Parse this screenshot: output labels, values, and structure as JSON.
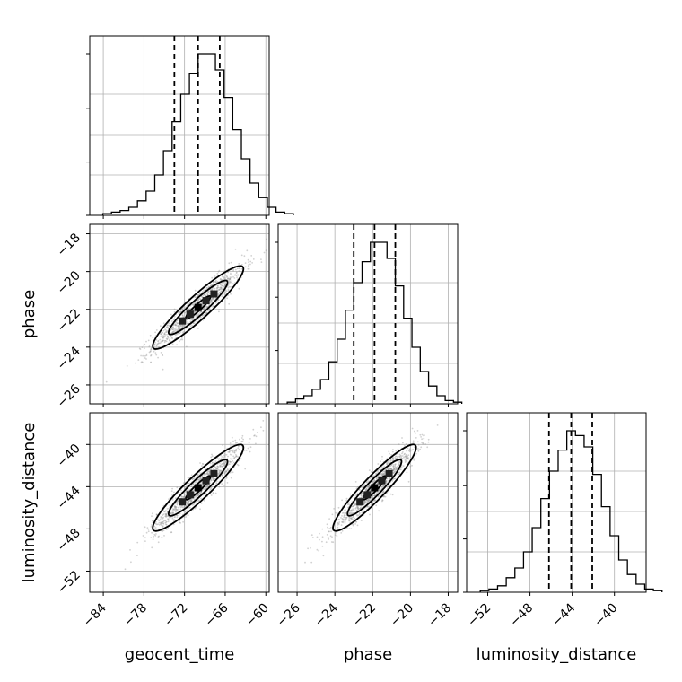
{
  "chart_data": {
    "type": "corner",
    "parameters": [
      "geocent_time",
      "phase",
      "luminosity_distance"
    ],
    "axis_labels": [
      "geocent_time",
      "phase",
      "luminosity_distance"
    ],
    "ranges": [
      [
        -86.0,
        -59.5
      ],
      [
        -27.0,
        -17.5
      ],
      [
        -54.0,
        -37.0
      ]
    ],
    "ticks": [
      [
        -84,
        -78,
        -72,
        -66,
        -60
      ],
      [
        -26,
        -24,
        -22,
        -20,
        -18
      ],
      [
        -52,
        -48,
        -44,
        -40
      ]
    ],
    "tick_labels": [
      [
        "−84",
        "−78",
        "−72",
        "−66",
        "−60"
      ],
      [
        "−26",
        "−24",
        "−22",
        "−20",
        "−18"
      ],
      [
        "−52",
        "−48",
        "−44",
        "−40"
      ]
    ],
    "quantiles": [
      [
        -73.5,
        -70.0,
        -66.8
      ],
      [
        -23.0,
        -21.9,
        -20.8
      ],
      [
        -46.2,
        -44.1,
        -42.1
      ]
    ],
    "histograms": [
      [
        1,
        2,
        3,
        5,
        9,
        15,
        25,
        40,
        58,
        75,
        88,
        100,
        100,
        90,
        73,
        53,
        35,
        20,
        11,
        5,
        2,
        1
      ],
      [
        1,
        3,
        5,
        9,
        15,
        26,
        40,
        58,
        75,
        88,
        100,
        100,
        90,
        73,
        53,
        35,
        20,
        11,
        5,
        2,
        1
      ],
      [
        1,
        2,
        4,
        9,
        15,
        25,
        40,
        58,
        75,
        88,
        100,
        97,
        90,
        73,
        53,
        35,
        20,
        11,
        5,
        2,
        1
      ]
    ],
    "correlations": {
      "1,0": 0.93,
      "2,0": 0.93,
      "2,1": 0.93
    },
    "grid": true
  }
}
